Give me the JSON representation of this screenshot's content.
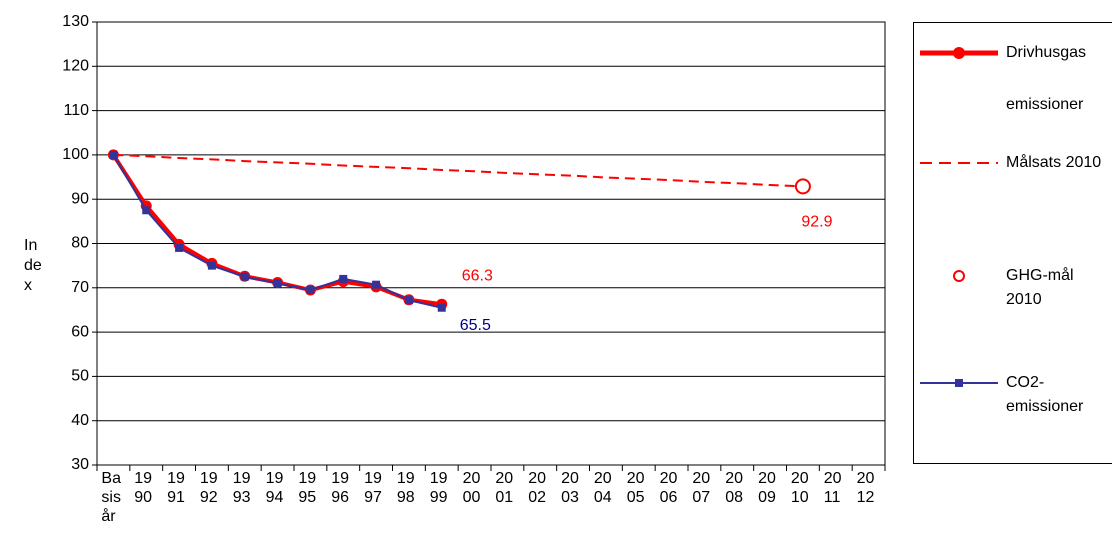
{
  "chart_data": {
    "type": "line",
    "y_label": "Index",
    "categories": [
      "Basis år",
      "1990",
      "1991",
      "1992",
      "1993",
      "1994",
      "1995",
      "1996",
      "1997",
      "1998",
      "1999",
      "2000",
      "2001",
      "2002",
      "2003",
      "2004",
      "2005",
      "2006",
      "2007",
      "2008",
      "2009",
      "2010",
      "2011",
      "2012"
    ],
    "series": [
      {
        "name": "Drivhusgas emissioner",
        "color": "#ff0000",
        "line": "solid",
        "marker": "circle",
        "label_last": true,
        "label_position": "above",
        "values": [
          100,
          88.5,
          79.8,
          75.5,
          72.6,
          71.2,
          69.5,
          71.4,
          70.2,
          67.3,
          66.3,
          null,
          null,
          null,
          null,
          null,
          null,
          null,
          null,
          null,
          null,
          null,
          null,
          null
        ]
      },
      {
        "name": "Målsats 2010",
        "color": "#ff0000",
        "line": "dashed",
        "marker": "none",
        "label_last": false,
        "label_position": "none",
        "values": [
          100,
          99.7,
          99.3,
          99.0,
          98.6,
          98.3,
          98.0,
          97.6,
          97.3,
          97.0,
          96.6,
          96.3,
          95.9,
          95.6,
          95.3,
          94.9,
          94.6,
          94.3,
          93.9,
          93.6,
          93.2,
          92.9,
          null,
          null
        ]
      },
      {
        "name": "GHG-mål 2010",
        "color": "#ff0000",
        "line": "none",
        "marker": "open-circle",
        "label_last": true,
        "label_position": "below",
        "values": [
          null,
          null,
          null,
          null,
          null,
          null,
          null,
          null,
          null,
          null,
          null,
          null,
          null,
          null,
          null,
          null,
          null,
          null,
          null,
          null,
          null,
          92.9,
          null,
          null
        ]
      },
      {
        "name": "CO2-emissioner",
        "color": "#333399",
        "line": "solid",
        "marker": "square",
        "label_last": true,
        "label_position": "right",
        "values": [
          100,
          87.5,
          79,
          75,
          72.5,
          71,
          69.5,
          72,
          70.7,
          67.2,
          65.5,
          null,
          null,
          null,
          null,
          null,
          null,
          null,
          null,
          null,
          null,
          null,
          null,
          null
        ]
      }
    ],
    "ylim": [
      30,
      130
    ],
    "yticks": [
      30,
      40,
      50,
      60,
      70,
      80,
      90,
      100,
      110,
      120,
      130
    ],
    "grid": true,
    "legend": "right"
  }
}
